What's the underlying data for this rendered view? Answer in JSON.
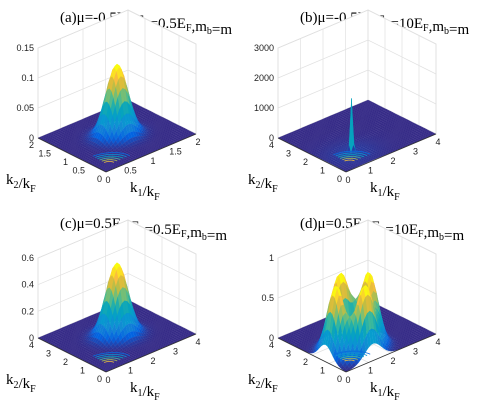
{
  "chart_data": [
    {
      "type": "surface",
      "title": {
        "prefix": "(a)",
        "mu": "μ=-0.5E",
        "mu_sub": "F",
        "eb": ",E",
        "eb_sub": "b",
        "eb_val": "=0.5E",
        "eb_val_sub": "F",
        "mb": ",m",
        "mb_sub": "b",
        "mb_val": "=m"
      },
      "xlabel": {
        "main": "k",
        "sub1": "1",
        "mid": "/k",
        "sub2": "F"
      },
      "ylabel": {
        "main": "k",
        "sub1": "2",
        "mid": "/k",
        "sub2": "F"
      },
      "xlim": [
        0,
        2
      ],
      "ylim": [
        0,
        2
      ],
      "zlim": [
        0,
        0.15
      ],
      "xticks": [
        "0",
        "0.5",
        "1",
        "1.5",
        "2"
      ],
      "yticks": [
        "0",
        "0.5",
        "1",
        "1.5",
        "2"
      ],
      "zticks": [
        "0",
        "0.05",
        "0.1",
        "0.15"
      ],
      "shape": "single-peak",
      "peak": 0.12
    },
    {
      "type": "surface",
      "title": {
        "prefix": "(b)",
        "mu": "μ=-0.5E",
        "mu_sub": "F",
        "eb": ",E",
        "eb_sub": "b",
        "eb_val": "=10E",
        "eb_val_sub": "F",
        "mb": ",m",
        "mb_sub": "b",
        "mb_val": "=m"
      },
      "xlabel": {
        "main": "k",
        "sub1": "1",
        "mid": "/k",
        "sub2": "F"
      },
      "ylabel": {
        "main": "k",
        "sub1": "2",
        "mid": "/k",
        "sub2": "F"
      },
      "xlim": [
        0,
        4
      ],
      "ylim": [
        0,
        4
      ],
      "zlim": [
        0,
        3000
      ],
      "xticks": [
        "0",
        "1",
        "2",
        "3",
        "4"
      ],
      "yticks": [
        "0",
        "1",
        "2",
        "3",
        "4"
      ],
      "zticks": [
        "0",
        "1000",
        "2000",
        "3000"
      ],
      "shape": "spike",
      "peak": 1800
    },
    {
      "type": "surface",
      "title": {
        "prefix": "(c)",
        "mu": "μ=0.5E",
        "mu_sub": "F",
        "eb": ",E",
        "eb_sub": "b",
        "eb_val": "=0.5E",
        "eb_val_sub": "F",
        "mb": ",m",
        "mb_sub": "b",
        "mb_val": "=m"
      },
      "xlabel": {
        "main": "k",
        "sub1": "1",
        "mid": "/k",
        "sub2": "F"
      },
      "ylabel": {
        "main": "k",
        "sub1": "2",
        "mid": "/k",
        "sub2": "F"
      },
      "xlim": [
        0,
        4
      ],
      "ylim": [
        0,
        4
      ],
      "zlim": [
        0,
        0.6
      ],
      "xticks": [
        "0",
        "1",
        "2",
        "3",
        "4"
      ],
      "yticks": [
        "0",
        "1",
        "2",
        "3",
        "4"
      ],
      "zticks": [
        "0",
        "0.2",
        "0.4",
        "0.6"
      ],
      "shape": "single-peak",
      "peak": 0.55
    },
    {
      "type": "surface",
      "title": {
        "prefix": "(d)",
        "mu": "μ=0.5E",
        "mu_sub": "F",
        "eb": ",E",
        "eb_sub": "b",
        "eb_val": "=10E",
        "eb_val_sub": "F",
        "mb": ",m",
        "mb_sub": "b",
        "mb_val": "=m"
      },
      "xlabel": {
        "main": "k",
        "sub1": "1",
        "mid": "/k",
        "sub2": "F"
      },
      "ylabel": {
        "main": "k",
        "sub1": "2",
        "mid": "/k",
        "sub2": "F"
      },
      "xlim": [
        0,
        4
      ],
      "ylim": [
        0,
        4
      ],
      "zlim": [
        0,
        1
      ],
      "xticks": [
        "0",
        "1",
        "2",
        "3",
        "4"
      ],
      "yticks": [
        "0",
        "1",
        "2",
        "3",
        "4"
      ],
      "zticks": [
        "0",
        "0.5",
        "1"
      ],
      "shape": "double-peak",
      "peak": 0.9
    }
  ]
}
